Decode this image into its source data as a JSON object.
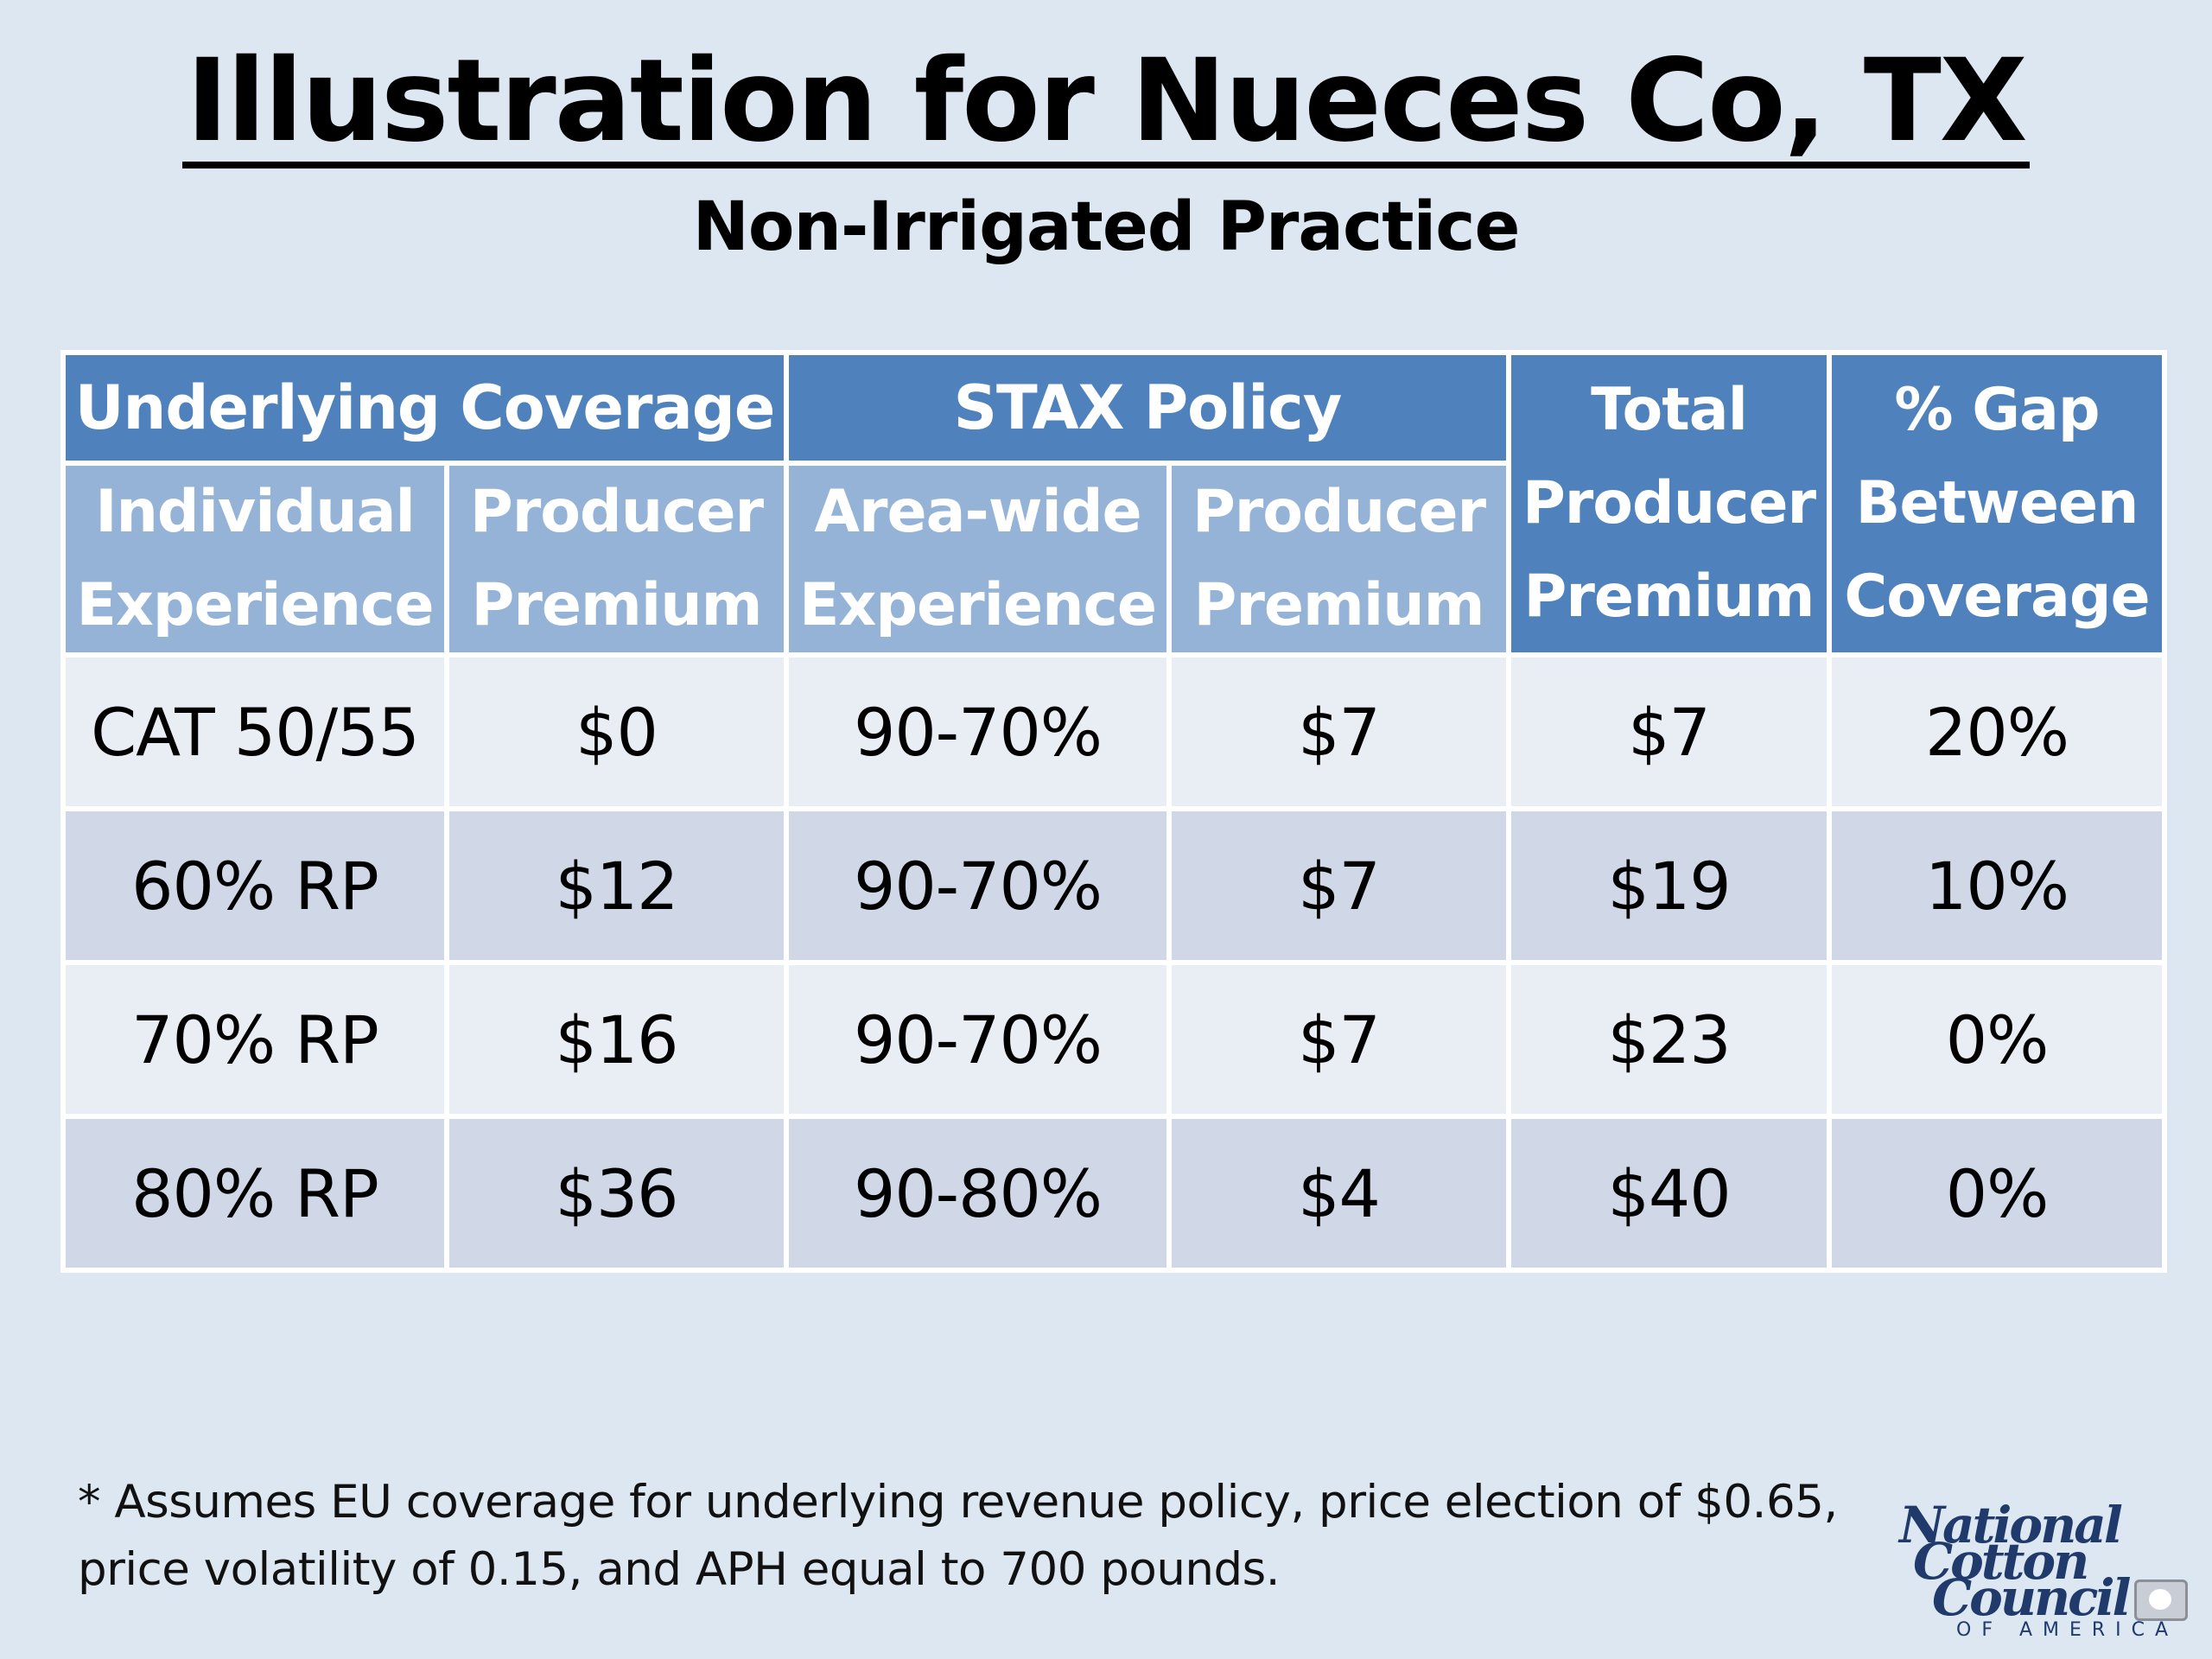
{
  "slide": {
    "title": "Illustration for Nueces Co, TX",
    "subtitle": "Non-Irrigated Practice"
  },
  "table": {
    "group_headers": {
      "underlying": "Underlying Coverage",
      "stax": "STAX Policy"
    },
    "total_header": [
      "Total",
      "Producer",
      "Premium"
    ],
    "gap_header": [
      "% Gap",
      "Between",
      "Coverage"
    ],
    "sub_headers": {
      "individual": [
        "Individual",
        "Experience"
      ],
      "producer_premium_1": [
        "Producer",
        "Premium"
      ],
      "area_wide": [
        "Area-wide",
        "Experience"
      ],
      "producer_premium_2": [
        "Producer",
        "Premium"
      ]
    },
    "rows": [
      {
        "individual": "CAT 50/55",
        "premium": "$0",
        "area": "90-70%",
        "stax_premium": "$7",
        "total": "$7",
        "gap": "20%"
      },
      {
        "individual": "60% RP",
        "premium": "$12",
        "area": "90-70%",
        "stax_premium": "$7",
        "total": "$19",
        "gap": "10%"
      },
      {
        "individual": "70% RP",
        "premium": "$16",
        "area": "90-70%",
        "stax_premium": "$7",
        "total": "$23",
        "gap": "0%"
      },
      {
        "individual": "80% RP",
        "premium": "$36",
        "area": "90-80%",
        "stax_premium": "$4",
        "total": "$40",
        "gap": "0%"
      }
    ]
  },
  "footnote": {
    "line1": "* Assumes EU coverage for underlying revenue policy, price election of $0.65,",
    "line2": "price volatility of 0.15, and APH equal to 700 pounds."
  },
  "logo": {
    "line1": "National",
    "line2": "Cotton",
    "line3": "Council",
    "line4": "OF AMERICA"
  },
  "colors": {
    "background": "#dde7f1",
    "header_dark": "#4f81bd",
    "header_light": "#95b3d7",
    "row_light": "#e9edf4",
    "row_dark": "#d0d8e8"
  }
}
